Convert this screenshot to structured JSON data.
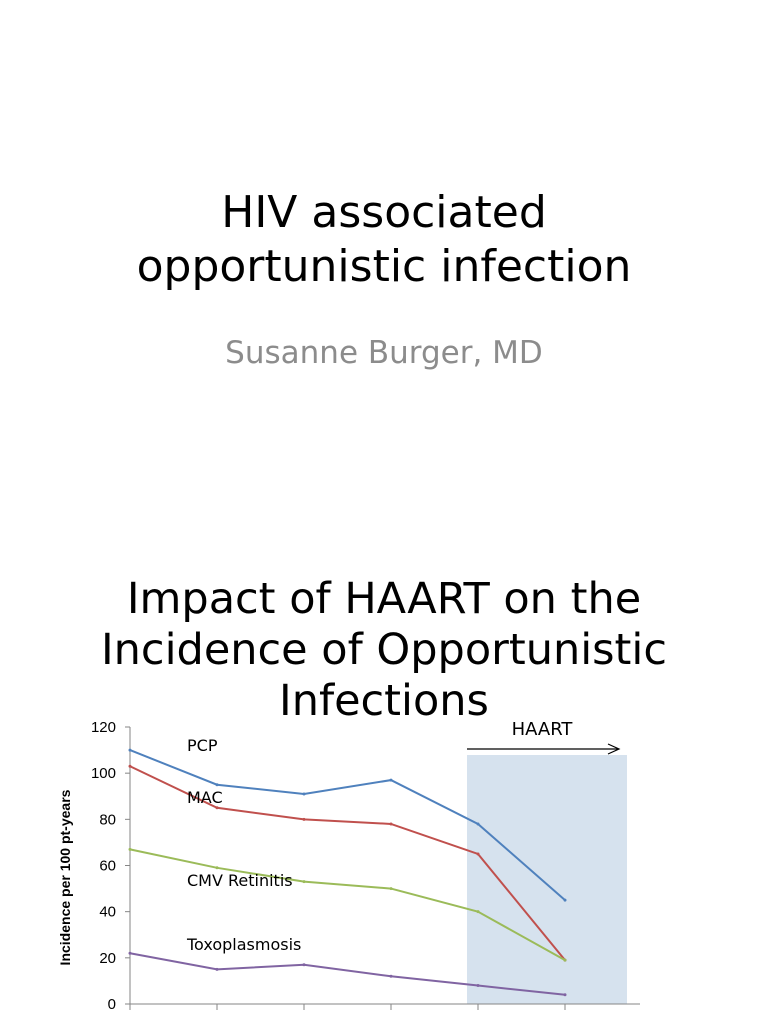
{
  "slide1": {
    "title_line1": "HIV associated",
    "title_line2": "opportunistic infection",
    "subtitle": "Susanne Burger, MD"
  },
  "slide2": {
    "title_line1": "Impact of HAART on the",
    "title_line2": "Incidence of Opportunistic",
    "title_line3": "Infections"
  },
  "chart_data": {
    "type": "line",
    "title": "",
    "xlabel": "",
    "ylabel": "Incidence per 100 pt-years",
    "ylim": [
      0,
      120
    ],
    "yticks": [
      0,
      20,
      40,
      60,
      80,
      100,
      120
    ],
    "x": [
      1,
      2,
      3,
      4,
      5,
      6
    ],
    "grid": false,
    "series": [
      {
        "name": "PCP",
        "color": "#4f81bd",
        "values": [
          110,
          95,
          91,
          97,
          78,
          45
        ]
      },
      {
        "name": "MAC",
        "color": "#c0504d",
        "values": [
          103,
          85,
          80,
          78,
          65,
          19
        ]
      },
      {
        "name": "CMV Retinitis",
        "color": "#9bbb59",
        "values": [
          67,
          59,
          53,
          50,
          40,
          19
        ]
      },
      {
        "name": "Toxoplasmosis",
        "color": "#8064a2",
        "values": [
          22,
          15,
          17,
          12,
          8,
          4
        ]
      }
    ],
    "annotation": {
      "label": "HAART",
      "shade_color": "#d6e2ee",
      "arrow": "right"
    }
  }
}
